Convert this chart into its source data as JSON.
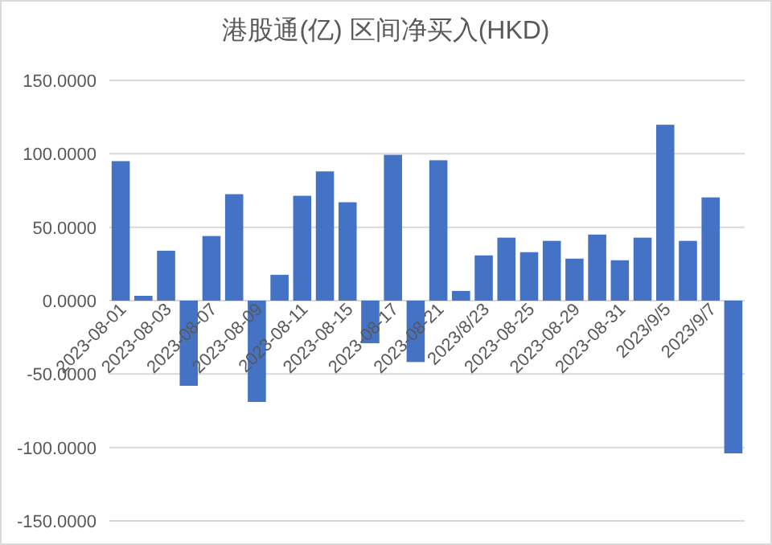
{
  "chart_data": {
    "type": "bar",
    "title": "港股通(亿) 区间净买入(HKD)",
    "categories": [
      "2023-08-01",
      null,
      "2023-08-03",
      null,
      "2023-08-07",
      null,
      "2023-08-09",
      null,
      "2023-08-11",
      null,
      "2023-08-15",
      null,
      "2023-08-17",
      null,
      "2023-08-21",
      null,
      "2023/8/23",
      null,
      "2023-08-25",
      null,
      "2023-08-29",
      null,
      "2023-08-31",
      null,
      "2023/9/5",
      null,
      "2023/9/7",
      null
    ],
    "values": [
      95,
      3.3,
      34,
      -58,
      44,
      72.5,
      -69,
      17.6,
      71.4,
      88,
      67,
      -29,
      99.3,
      -41.8,
      95.6,
      6.6,
      30.8,
      42.9,
      33,
      40.7,
      28.6,
      45,
      27.5,
      42.9,
      119.8,
      40.7,
      70.3,
      -104
    ],
    "color": "#4472c4",
    "ylim": [
      -150,
      150
    ],
    "yticks": [
      {
        "value": -150,
        "label": "-150.0000"
      },
      {
        "value": -100,
        "label": "-100.0000"
      },
      {
        "value": -50,
        "label": "-50.0000"
      },
      {
        "value": 0,
        "label": "0.0000"
      },
      {
        "value": 50,
        "label": "50.0000"
      },
      {
        "value": 100,
        "label": "100.0000"
      },
      {
        "value": 150,
        "label": "150.0000"
      }
    ],
    "grid": "y"
  }
}
